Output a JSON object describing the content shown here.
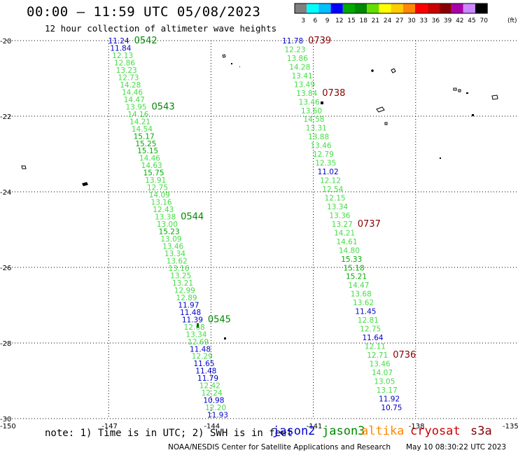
{
  "header": {
    "title": "00:00 – 11:59 UTC 05/08/2023",
    "subtitle": "12 hour collection of altimeter wave heights"
  },
  "color_scale": {
    "unit": "(ft)",
    "ticks": [
      "3",
      "6",
      "9",
      "12",
      "15",
      "18",
      "21",
      "24",
      "27",
      "30",
      "33",
      "36",
      "39",
      "42",
      "45",
      "70"
    ],
    "colors": [
      "#808080",
      "#00ffff",
      "#00bfff",
      "#0000ff",
      "#00aa00",
      "#008800",
      "#66dd00",
      "#ffff00",
      "#ffcc00",
      "#ff8800",
      "#ff0000",
      "#cc0000",
      "#880000",
      "#aa00aa",
      "#cc88ff",
      "#000000"
    ]
  },
  "footer": {
    "note": "note: 1) Time is in UTC; 2) SWH is in feet",
    "credit": "NOAA/NESDIS Center for Satellite Applications and Research",
    "timestamp": "May 10 08:30:22 UTC 2023"
  },
  "legend": [
    {
      "name": "jason2",
      "color": "#0000cc"
    },
    {
      "name": "jason3",
      "color": "#008800"
    },
    {
      "name": "altika",
      "color": "#ff8800"
    },
    {
      "name": "cryosat",
      "color": "#cc0000"
    },
    {
      "name": "s3a",
      "color": "#880000"
    }
  ],
  "chart_data": {
    "type": "scatter",
    "xlim": [
      -150,
      -135
    ],
    "ylim": [
      -30,
      -20
    ],
    "x_ticks": [
      "-150",
      "-147",
      "-144",
      "-141",
      "-138",
      "-135"
    ],
    "y_ticks": [
      "-20",
      "-22",
      "-24",
      "-26",
      "-28",
      "-30"
    ],
    "grid": true,
    "series": [
      {
        "name": "jason3",
        "start": [
          -146.5,
          -20.0
        ],
        "end": [
          -143.6,
          -29.9
        ],
        "values": [
          "11.24",
          "11.84",
          "12.13",
          "12.86",
          "13.23",
          "12.73",
          "14.28",
          "14.46",
          "14.47",
          "13.95",
          "14.16",
          "14.21",
          "14.54",
          "15.17",
          "15.25",
          "15.15",
          "14.46",
          "14.63",
          "15.75",
          "13.91",
          "12.75",
          "14.09",
          "13.16",
          "12.43",
          "13.38",
          "13.00",
          "15.23",
          "13.09",
          "13.46",
          "13.34",
          "13.62",
          "13.16",
          "13.25",
          "13.21",
          "12.99",
          "12.89",
          "11.97",
          "11.48",
          "11.39",
          "12.68",
          "13.34",
          "12.69",
          "11.48",
          "12.29",
          "11.65",
          "11.48",
          "11.79",
          "12.42",
          "12.24",
          "10.98",
          "12.20",
          "11.93"
        ],
        "time_labels": [
          {
            "text": "0542",
            "index": 0
          },
          {
            "text": "0543",
            "index": 9
          },
          {
            "text": "0544",
            "index": 24
          },
          {
            "text": "0545",
            "index": 38
          }
        ],
        "time_color": "#008800"
      },
      {
        "name": "s3a",
        "start": [
          -141.4,
          -20.0
        ],
        "end": [
          -138.5,
          -29.7
        ],
        "values": [
          "11.78",
          "12.23",
          "13.86",
          "14.28",
          "13.41",
          "13.49",
          "13.84",
          "13.46",
          "13.60",
          "14.58",
          "13.31",
          "13.88",
          "13.46",
          "12.79",
          "12.35",
          "11.02",
          "12.12",
          "12.54",
          "12.15",
          "13.34",
          "13.36",
          "13.27",
          "14.21",
          "14.61",
          "14.80",
          "15.33",
          "15.18",
          "15.21",
          "14.47",
          "13.68",
          "13.62",
          "11.45",
          "12.81",
          "12.75",
          "11.64",
          "12.11",
          "12.71",
          "13.46",
          "14.07",
          "13.05",
          "13.17",
          "11.92",
          "10.75"
        ],
        "time_labels": [
          {
            "text": "0739",
            "index": 0
          },
          {
            "text": "0738",
            "index": 6
          },
          {
            "text": "0737",
            "index": 21
          },
          {
            "text": "0736",
            "index": 36
          }
        ],
        "time_color": "#880000"
      }
    ]
  }
}
